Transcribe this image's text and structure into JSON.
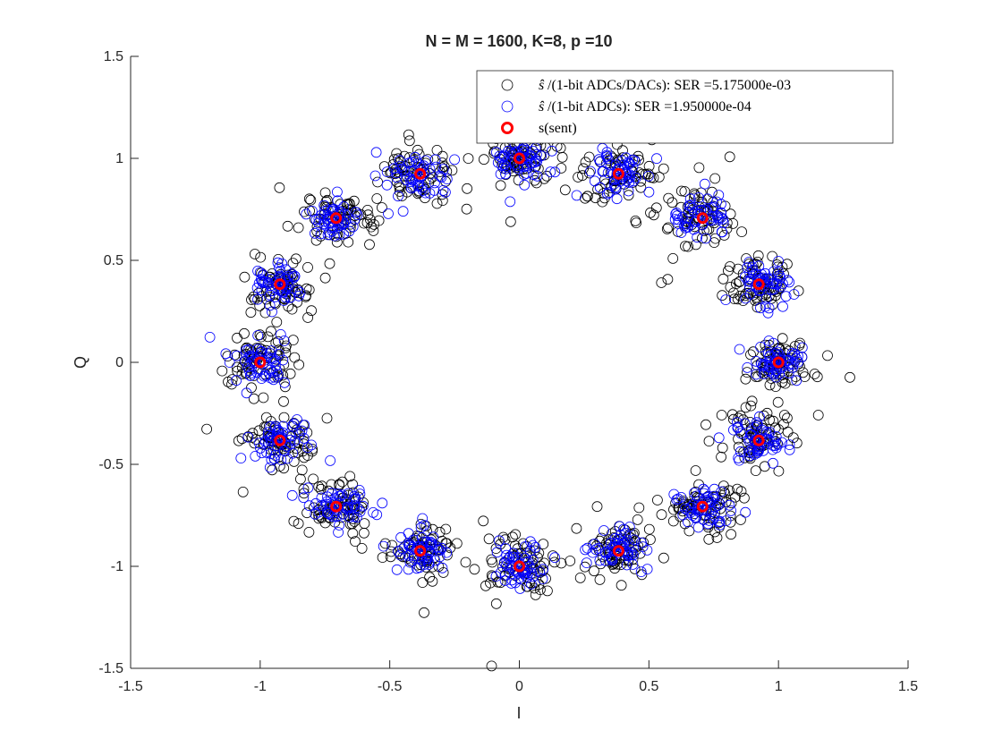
{
  "chart_data": {
    "type": "scatter",
    "title": "N = M = 1600, K=8, p =10",
    "xlabel": "I",
    "ylabel": "Q",
    "xlim": [
      -1.5,
      1.5
    ],
    "ylim": [
      -1.5,
      1.5
    ],
    "xticks": [
      "-1.5",
      "-1",
      "-0.5",
      "0",
      "0.5",
      "1",
      "1.5"
    ],
    "yticks": [
      "-1.5",
      "-1",
      "-0.5",
      "0",
      "0.5",
      "1",
      "1.5"
    ],
    "grid": false,
    "legend_position": "top-right",
    "constellation": "16-PSK, unit circle, symbols at k·22.5°",
    "series": [
      {
        "name": "ŝ/(1-bit ADCs/DACs): SER =5.175000e-03",
        "legend_label": "/(1-bit ADCs/DACs): SER =5.175000e-03",
        "color": "#000000",
        "marker": "open-circle",
        "cluster_spread": 0.065,
        "outlier_spread": 0.13
      },
      {
        "name": "ŝ/(1-bit ADCs): SER =1.950000e-04",
        "legend_label": "/(1-bit ADCs): SER =1.950000e-04",
        "color": "#0000ff",
        "marker": "open-circle",
        "cluster_spread": 0.05,
        "outlier_spread": 0.08
      },
      {
        "name": "s(sent)",
        "legend_label": "s(sent)",
        "color": "#ff0000",
        "marker": "thick-open-circle",
        "points": [
          [
            1,
            0
          ],
          [
            0.924,
            0.383
          ],
          [
            0.707,
            0.707
          ],
          [
            0.383,
            0.924
          ],
          [
            0,
            1
          ],
          [
            -0.383,
            0.924
          ],
          [
            -0.707,
            0.707
          ],
          [
            -0.924,
            0.383
          ],
          [
            -1,
            0
          ],
          [
            -0.924,
            -0.383
          ],
          [
            -0.707,
            -0.707
          ],
          [
            -0.383,
            -0.924
          ],
          [
            0,
            -1
          ],
          [
            0.383,
            -0.924
          ],
          [
            0.707,
            -0.707
          ],
          [
            0.924,
            -0.383
          ]
        ]
      }
    ]
  }
}
